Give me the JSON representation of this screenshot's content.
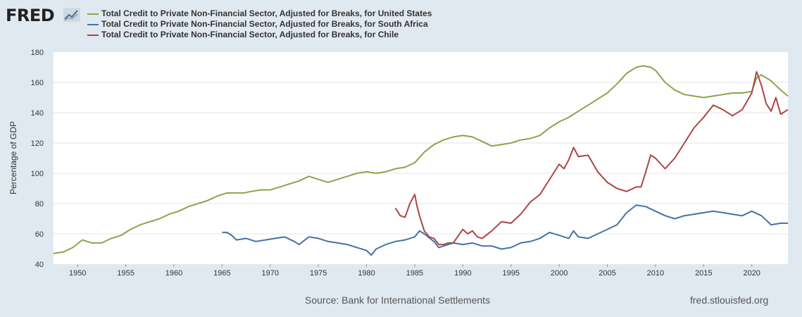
{
  "header": {
    "logo_text": "FRED",
    "logo_icon": "trend-chart-icon"
  },
  "colors": {
    "background": "#e1e9f0",
    "plot_bg": "#ffffff",
    "grid": "#e6e6e6",
    "us": "#89a54e",
    "south_africa": "#4572a7",
    "chile": "#aa4643"
  },
  "chart_data": {
    "type": "line",
    "title": "",
    "xlabel": "",
    "ylabel": "Percentage of GDP",
    "xlim": [
      1947.5,
      2023.75
    ],
    "ylim": [
      40,
      180
    ],
    "yticks": [
      40,
      60,
      80,
      100,
      120,
      140,
      160,
      180
    ],
    "xticks": [
      1950,
      1955,
      1960,
      1965,
      1970,
      1975,
      1980,
      1985,
      1990,
      1995,
      2000,
      2005,
      2010,
      2015,
      2020
    ],
    "legend_position": "top-left",
    "series": [
      {
        "name": "Total Credit to Private Non-Financial Sector, Adjusted for Breaks, for United States",
        "color": "#89a54e",
        "x": [
          1947.5,
          1948.5,
          1949.5,
          1950.5,
          1951.0,
          1951.5,
          1952.5,
          1953.5,
          1954.5,
          1955.5,
          1956.5,
          1957.5,
          1958.5,
          1959.5,
          1960.5,
          1961.5,
          1962.5,
          1963.5,
          1964.5,
          1965.5,
          1966.5,
          1967.3,
          1968.0,
          1969.0,
          1970.0,
          1971.0,
          1972.0,
          1973.0,
          1974.0,
          1975.0,
          1976.0,
          1977.0,
          1978.0,
          1979.0,
          1980.0,
          1981.0,
          1982.0,
          1983.0,
          1984.0,
          1985.0,
          1986.0,
          1987.0,
          1988.0,
          1989.0,
          1990.0,
          1991.0,
          1992.0,
          1993.0,
          1994.0,
          1995.0,
          1996.0,
          1997.0,
          1998.0,
          1999.0,
          2000.0,
          2001.0,
          2002.0,
          2003.0,
          2004.0,
          2005.0,
          2006.0,
          2007.0,
          2008.0,
          2008.75,
          2009.5,
          2010.0,
          2011.0,
          2012.0,
          2013.0,
          2014.0,
          2015.0,
          2016.0,
          2017.0,
          2018.0,
          2019.0,
          2020.0,
          2020.5,
          2021.0,
          2022.0,
          2023.0,
          2023.75
        ],
        "values": [
          47,
          48,
          51,
          56,
          55,
          54,
          54,
          57,
          59,
          63,
          66,
          68,
          70,
          73,
          75,
          78,
          80,
          82,
          85,
          87,
          87,
          87,
          88,
          89,
          89,
          91,
          93,
          95,
          98,
          96,
          94,
          96,
          98,
          100,
          101,
          100,
          101,
          103,
          104,
          107,
          114,
          119,
          122,
          124,
          125,
          124,
          121,
          118,
          119,
          120,
          122,
          123,
          125,
          130,
          134,
          137,
          141,
          145,
          149,
          153,
          159,
          166,
          170,
          171,
          170,
          168,
          160,
          155,
          152,
          151,
          150,
          151,
          152,
          153,
          153,
          154,
          163,
          165,
          161,
          155,
          151
        ]
      },
      {
        "name": "Total Credit to Private Non-Financial Sector, Adjusted for Breaks, for South Africa",
        "color": "#4572a7",
        "x": [
          1965.0,
          1965.5,
          1966.0,
          1966.5,
          1967.5,
          1968.5,
          1969.5,
          1970.5,
          1971.5,
          1972.5,
          1973.0,
          1974.0,
          1975.0,
          1976.0,
          1977.0,
          1978.0,
          1979.0,
          1980.0,
          1980.5,
          1981.0,
          1982.0,
          1983.0,
          1984.0,
          1985.0,
          1985.5,
          1986.0,
          1987.0,
          1987.5,
          1988.0,
          1989.0,
          1990.0,
          1991.0,
          1992.0,
          1993.0,
          1994.0,
          1995.0,
          1996.0,
          1997.0,
          1998.0,
          1999.0,
          2000.0,
          2001.0,
          2001.5,
          2002.0,
          2003.0,
          2004.0,
          2005.0,
          2006.0,
          2007.0,
          2008.0,
          2009.0,
          2010.0,
          2011.0,
          2012.0,
          2013.0,
          2014.0,
          2015.0,
          2016.0,
          2017.0,
          2018.0,
          2019.0,
          2020.0,
          2021.0,
          2022.0,
          2023.0,
          2023.75
        ],
        "values": [
          61,
          61,
          59,
          56,
          57,
          55,
          56,
          57,
          58,
          55,
          53,
          58,
          57,
          55,
          54,
          53,
          51,
          49,
          46,
          50,
          53,
          55,
          56,
          58,
          62,
          60,
          55,
          51,
          52,
          54,
          53,
          54,
          52,
          52,
          50,
          51,
          54,
          55,
          57,
          61,
          59,
          57,
          62,
          58,
          57,
          60,
          63,
          66,
          74,
          79,
          78,
          75,
          72,
          70,
          72,
          73,
          74,
          75,
          74,
          73,
          72,
          75,
          72,
          66,
          67,
          67
        ]
      },
      {
        "name": "Total Credit to Private Non-Financial Sector, Adjusted for Breaks, for Chile",
        "color": "#aa4643",
        "x": [
          1983.0,
          1983.5,
          1984.0,
          1984.5,
          1985.0,
          1985.25,
          1985.5,
          1986.0,
          1986.5,
          1987.0,
          1987.5,
          1988.0,
          1988.5,
          1989.0,
          1990.0,
          1990.5,
          1991.0,
          1991.5,
          1992.0,
          1993.0,
          1994.0,
          1995.0,
          1996.0,
          1997.0,
          1998.0,
          1999.0,
          2000.0,
          2000.5,
          2001.0,
          2001.5,
          2002.0,
          2003.0,
          2004.0,
          2005.0,
          2006.0,
          2007.0,
          2008.0,
          2008.5,
          2009.0,
          2009.5,
          2010.0,
          2011.0,
          2012.0,
          2013.0,
          2014.0,
          2015.0,
          2016.0,
          2017.0,
          2018.0,
          2019.0,
          2020.0,
          2020.5,
          2021.0,
          2021.5,
          2022.0,
          2022.5,
          2023.0,
          2023.75
        ],
        "values": [
          77,
          72,
          71,
          80,
          86,
          78,
          72,
          62,
          58,
          57,
          53,
          53,
          54,
          54,
          63,
          60,
          62,
          58,
          57,
          62,
          68,
          67,
          73,
          81,
          86,
          96,
          106,
          103,
          109,
          117,
          111,
          112,
          101,
          94,
          90,
          88,
          91,
          91,
          101,
          112,
          110,
          103,
          110,
          120,
          130,
          137,
          145,
          142,
          138,
          142,
          153,
          167,
          158,
          146,
          141,
          150,
          139,
          142
        ]
      }
    ]
  },
  "footer": {
    "source": "Source: Bank for International Settlements",
    "credit": "fred.stlouisfed.org"
  }
}
